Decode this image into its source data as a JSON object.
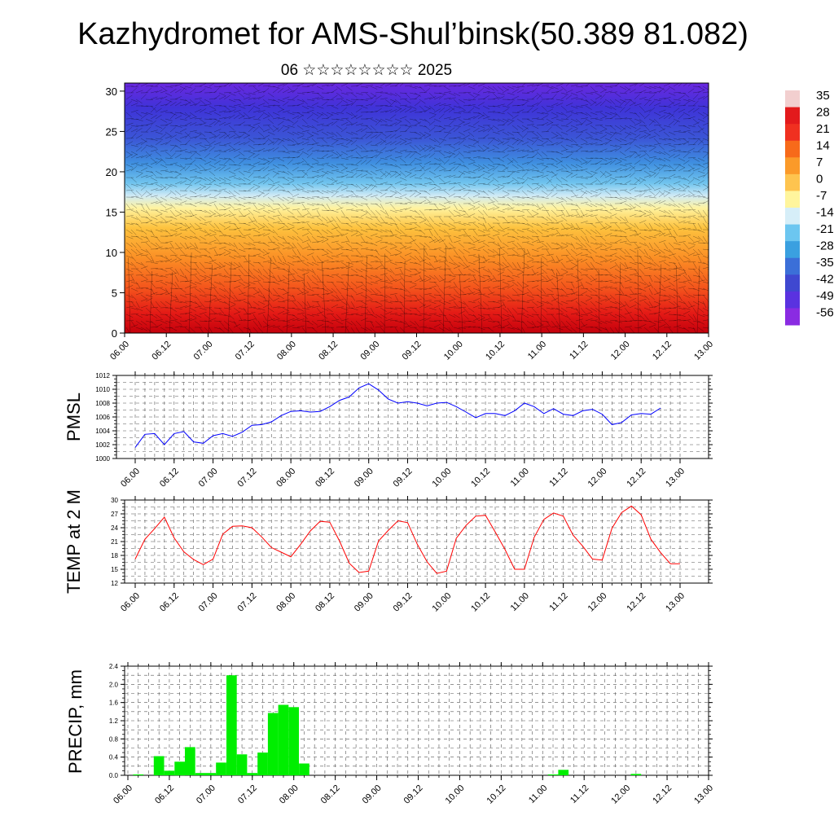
{
  "title": "Kazhydromet for AMS-Shul’binsk(50.389 81.082)",
  "subtitle": "06 ☆☆☆☆☆☆☆☆ 2025",
  "x_tick_labels": [
    "06.00",
    "06.12",
    "07.00",
    "07.12",
    "08.00",
    "08.12",
    "09.00",
    "09.12",
    "10.00",
    "10.12",
    "11.00",
    "11.12",
    "12.00",
    "12.12",
    "13.00"
  ],
  "colors": {
    "pmsl_line": "#0000ff",
    "temp_line": "#ff0000",
    "precip_bar": "#00ee00"
  },
  "chart_data": [
    {
      "type": "heatmap",
      "name": "vertical-section",
      "y_ticks": [
        0,
        5,
        10,
        15,
        20,
        25,
        30
      ],
      "ylim": [
        0,
        31
      ],
      "xlim": [
        0,
        14
      ],
      "colorbar_labels": [
        "35",
        "28",
        "21",
        "14",
        "7",
        "0",
        "-7",
        "-14",
        "-21",
        "-28",
        "-35",
        "-42",
        "-49",
        "-56"
      ],
      "colormap": [
        "#f2cfcf",
        "#e31a1c",
        "#f03020",
        "#f76a1a",
        "#fb9a29",
        "#fec44f",
        "#fff59d",
        "#d6eef8",
        "#6cc6f0",
        "#3aa0e0",
        "#3b6fd8",
        "#3f48d0",
        "#5a32e0",
        "#8a2be2"
      ]
    },
    {
      "type": "line",
      "name": "pmsl",
      "ylabel": "PMSL",
      "ylim": [
        1000,
        1012
      ],
      "y_ticks": [
        1000,
        1002,
        1004,
        1006,
        1008,
        1010,
        1012
      ],
      "x_start": 0,
      "x_step": 0.25,
      "values": [
        1001.6,
        1003.5,
        1003.6,
        1002.0,
        1003.6,
        1003.9,
        1002.4,
        1002.2,
        1003.3,
        1003.6,
        1003.2,
        1003.8,
        1004.8,
        1004.9,
        1005.3,
        1006.2,
        1006.8,
        1006.9,
        1006.7,
        1006.8,
        1007.5,
        1008.4,
        1008.9,
        1010.2,
        1010.8,
        1009.9,
        1008.6,
        1008.0,
        1008.2,
        1008.0,
        1007.6,
        1008.0,
        1008.1,
        1007.5,
        1006.7,
        1005.9,
        1006.5,
        1006.5,
        1006.2,
        1006.9,
        1008.0,
        1007.5,
        1006.5,
        1007.2,
        1006.4,
        1006.2,
        1006.9,
        1007.1,
        1006.4,
        1004.9,
        1005.2,
        1006.3,
        1006.5,
        1006.4,
        1007.3
      ]
    },
    {
      "type": "line",
      "name": "temperature-2m",
      "ylabel": "TEMP at 2 M",
      "ylim": [
        12,
        30
      ],
      "y_ticks": [
        12,
        15,
        18,
        21,
        24,
        27,
        30
      ],
      "x_start": 0,
      "x_step": 0.25,
      "values": [
        17.2,
        21.5,
        23.8,
        26.3,
        21.8,
        18.8,
        17.1,
        16.0,
        17.2,
        22.6,
        24.3,
        24.4,
        24.0,
        22.0,
        19.7,
        18.7,
        17.7,
        20.4,
        23.3,
        25.4,
        25.2,
        21.1,
        16.3,
        14.3,
        14.6,
        21.1,
        23.4,
        25.5,
        25.1,
        20.4,
        16.6,
        14.1,
        14.6,
        21.7,
        24.5,
        26.5,
        26.7,
        23.1,
        19.3,
        15.0,
        15.0,
        21.9,
        25.8,
        27.2,
        26.5,
        22.4,
        20.0,
        17.2,
        17.0,
        23.9,
        27.3,
        28.7,
        26.8,
        21.5,
        18.6,
        16.2,
        16.2
      ]
    },
    {
      "type": "bar",
      "name": "precipitation",
      "ylabel": "PRECIP, mm",
      "ylim": [
        0,
        2.4
      ],
      "y_ticks": [
        "0.0",
        "0.4",
        "0.8",
        "1.2",
        "1.6",
        "2.0",
        "2.4"
      ],
      "x_start": 0,
      "x_step": 0.25,
      "values": [
        0.0,
        0.02,
        0.0,
        0.42,
        0.1,
        0.3,
        0.62,
        0.05,
        0.05,
        0.28,
        2.2,
        0.46,
        0.05,
        0.5,
        1.37,
        1.55,
        1.5,
        0.26,
        0.0,
        0.0,
        0.0,
        0.0,
        0.0,
        0.0,
        0.0,
        0.0,
        0.0,
        0.0,
        0.0,
        0.0,
        0.0,
        0.0,
        0.0,
        0.0,
        0.0,
        0.0,
        0.0,
        0.0,
        0.0,
        0.0,
        0.0,
        0.02,
        0.12,
        0.0,
        0.0,
        0.0,
        0.0,
        0.0,
        0.0,
        0.03,
        0.0,
        0.0,
        0.0,
        0.0,
        0.0,
        0.0
      ]
    }
  ]
}
